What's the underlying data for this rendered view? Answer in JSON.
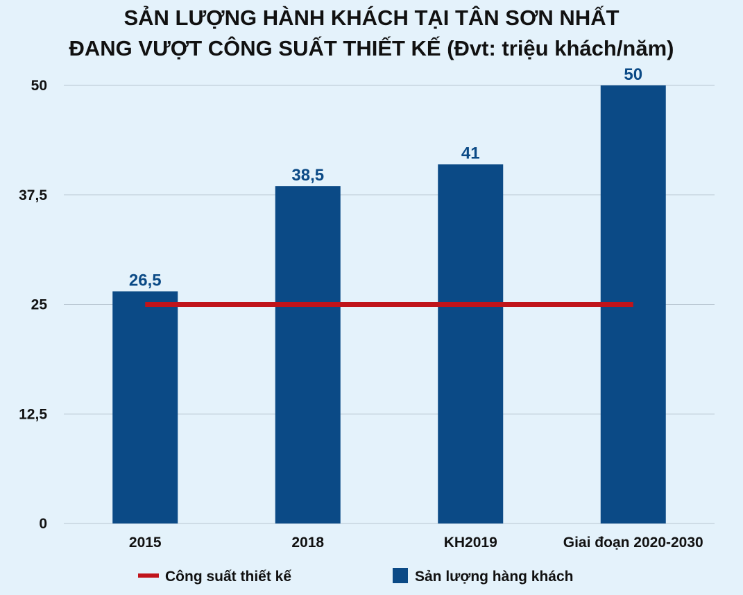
{
  "colors": {
    "bar": "#0b4a86",
    "line": "#c0141b",
    "grid": "#b8c6d2",
    "background": "#e4f2fb"
  },
  "chart_data": {
    "type": "bar",
    "title": "SẢN LƯỢNG HÀNH KHÁCH TẠI TÂN SƠN NHẤT",
    "subtitle": "ĐANG VƯỢT CÔNG SUẤT THIẾT KẾ (Đvt: triệu khách/năm)",
    "categories": [
      "2015",
      "2018",
      "KH2019",
      "Giai đoạn 2020-2030"
    ],
    "series": [
      {
        "name": "Sản lượng hàng khách",
        "kind": "bar",
        "values": [
          26.5,
          38.5,
          41,
          50
        ],
        "labels": [
          "26,5",
          "38,5",
          "41",
          "50"
        ]
      },
      {
        "name": "Công suất thiết kế",
        "kind": "line",
        "values": [
          25,
          25,
          25,
          25
        ]
      }
    ],
    "ylim": [
      0,
      50
    ],
    "yticks": [
      0,
      12.5,
      25,
      37.5,
      50
    ],
    "ytick_labels": [
      "0",
      "12,5",
      "25",
      "37,5",
      "50"
    ],
    "grid": true,
    "legend": {
      "placement": "bottom",
      "order": [
        "Công suất thiết kế",
        "Sản lượng hàng khách"
      ]
    }
  }
}
